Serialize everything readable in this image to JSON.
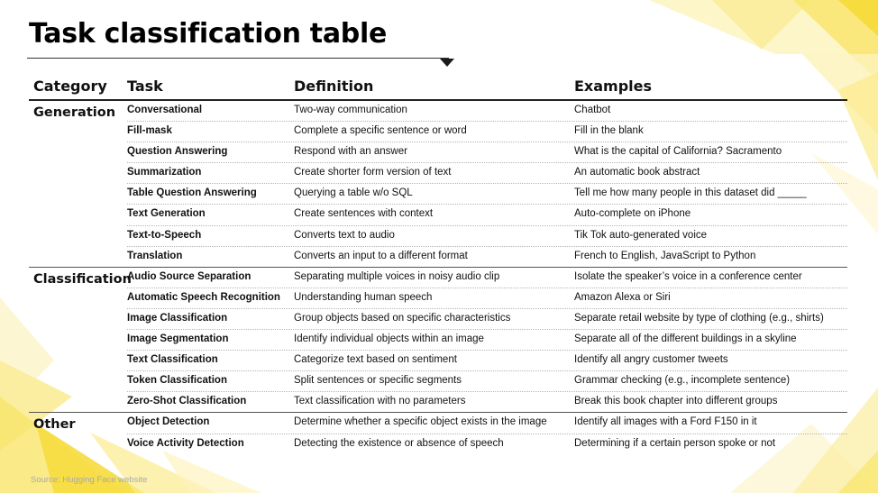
{
  "title": "Task classification table",
  "columns": {
    "category": "Category",
    "task": "Task",
    "definition": "Definition",
    "examples": "Examples"
  },
  "groups": [
    {
      "category": "Generation",
      "rows": [
        {
          "task": "Conversational",
          "definition": "Two-way communication",
          "example": "Chatbot"
        },
        {
          "task": "Fill-mask",
          "definition": "Complete a specific sentence or word",
          "example": "Fill in the blank"
        },
        {
          "task": "Question Answering",
          "definition": "Respond with an answer",
          "example": "What is the capital of California? Sacramento"
        },
        {
          "task": "Summarization",
          "definition": "Create shorter form version of text",
          "example": "An automatic book abstract"
        },
        {
          "task": "Table Question Answering",
          "definition": "Querying a table w/o SQL",
          "example": "Tell me how many people in this dataset did _____"
        },
        {
          "task": "Text Generation",
          "definition": "Create sentences with context",
          "example": "Auto-complete on iPhone"
        },
        {
          "task": "Text-to-Speech",
          "definition": "Converts text to audio",
          "example": "Tik Tok auto-generated voice"
        },
        {
          "task": "Translation",
          "definition": "Converts an input to a different format",
          "example": "French to English, JavaScript to Python"
        }
      ]
    },
    {
      "category": "Classification",
      "rows": [
        {
          "task": "Audio Source Separation",
          "definition": "Separating multiple voices in noisy audio clip",
          "example": "Isolate the speaker’s voice in a conference center"
        },
        {
          "task": "Automatic Speech Recognition",
          "definition": "Understanding human speech",
          "example": "Amazon Alexa or Siri"
        },
        {
          "task": "Image Classification",
          "definition": "Group objects based on specific characteristics",
          "example": "Separate retail website by type of clothing (e.g., shirts)"
        },
        {
          "task": "Image Segmentation",
          "definition": "Identify individual objects within an image",
          "example": "Separate all of the different buildings in a skyline"
        },
        {
          "task": "Text Classification",
          "definition": "Categorize text based on sentiment",
          "example": "Identify all angry customer tweets"
        },
        {
          "task": "Token Classification",
          "definition": "Split sentences or specific segments",
          "example": "Grammar checking (e.g., incomplete sentence)"
        },
        {
          "task": "Zero-Shot Classification",
          "definition": "Text classification with no parameters",
          "example": "Break this book chapter into different groups"
        }
      ]
    },
    {
      "category": "Other",
      "rows": [
        {
          "task": "Object Detection",
          "definition": "Determine whether a specific object exists in the image",
          "example": "Identify all images with a Ford F150 in it"
        },
        {
          "task": "Voice Activity Detection",
          "definition": "Detecting the existence or absence of speech",
          "example": "Determining if a certain person spoke or not"
        }
      ]
    }
  ],
  "source": "Source: Hugging Face website",
  "colors": {
    "accent_yellow": "#f7e35a",
    "rule": "#222222"
  }
}
